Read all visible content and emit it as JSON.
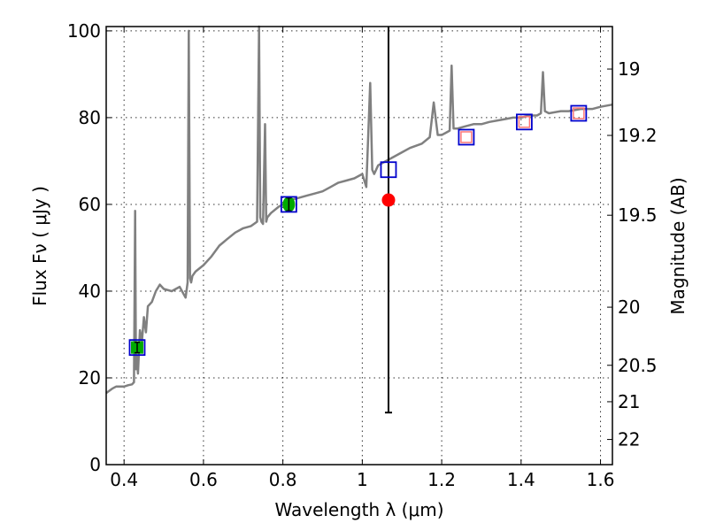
{
  "chart_data": {
    "type": "line",
    "title": "",
    "xlabel": "Wavelength  λ (μm)",
    "ylabel": "Flux  Fν  ( μJy )",
    "ylabel_right": "Magnitude (AB)",
    "xlim": [
      0.355,
      1.63
    ],
    "ylim": [
      0,
      101
    ],
    "grid": true,
    "x_ticks": [
      0.4,
      0.6,
      0.8,
      1.0,
      1.2,
      1.4,
      1.6
    ],
    "x_tick_labels": [
      "0.4",
      "0.6",
      "0.8",
      "1",
      "1.2",
      "1.4",
      "1.6"
    ],
    "y_ticks": [
      0,
      20,
      40,
      60,
      80,
      100
    ],
    "y_tick_labels": [
      "0",
      "20",
      "40",
      "60",
      "80",
      "100"
    ],
    "right_axis": {
      "ticks": [
        {
          "label": "19",
          "flux": 91.2
        },
        {
          "label": "19.2",
          "flux": 75.9
        },
        {
          "label": "19.5",
          "flux": 57.5
        },
        {
          "label": "20",
          "flux": 36.3
        },
        {
          "label": "20.5",
          "flux": 22.9
        },
        {
          "label": "21",
          "flux": 14.5
        },
        {
          "label": "22",
          "flux": 5.8
        }
      ]
    },
    "colors": {
      "spectrum": "#808080",
      "model_box": "#0000cc",
      "green_point": "#00aa00",
      "red_point": "#ff0000",
      "red_box": "#ff7777"
    },
    "series": [
      {
        "type": "line",
        "x": [
          0.355,
          0.37,
          0.38,
          0.39,
          0.4,
          0.41,
          0.42,
          0.425,
          0.428,
          0.43,
          0.432,
          0.435,
          0.44,
          0.445,
          0.45,
          0.455,
          0.46,
          0.47,
          0.48,
          0.49,
          0.5,
          0.52,
          0.54,
          0.555,
          0.56,
          0.563,
          0.566,
          0.569,
          0.572,
          0.58,
          0.6,
          0.62,
          0.64,
          0.66,
          0.68,
          0.7,
          0.72,
          0.735,
          0.74,
          0.743,
          0.746,
          0.75,
          0.755,
          0.758,
          0.761,
          0.77,
          0.79,
          0.8,
          0.82,
          0.84,
          0.86,
          0.88,
          0.9,
          0.92,
          0.94,
          0.96,
          0.98,
          1.0,
          1.01,
          1.02,
          1.025,
          1.03,
          1.04,
          1.06,
          1.08,
          1.1,
          1.12,
          1.15,
          1.17,
          1.18,
          1.19,
          1.2,
          1.21,
          1.22,
          1.225,
          1.23,
          1.24,
          1.26,
          1.28,
          1.3,
          1.32,
          1.35,
          1.38,
          1.4,
          1.42,
          1.44,
          1.45,
          1.455,
          1.46,
          1.47,
          1.5,
          1.52,
          1.55,
          1.58,
          1.6,
          1.63
        ],
        "y": [
          16.5,
          17.5,
          18.0,
          18.0,
          18.0,
          18.3,
          18.5,
          19.0,
          58.5,
          22.0,
          25.0,
          21.0,
          31.0,
          28.5,
          34.0,
          30.5,
          36.5,
          37.5,
          40.0,
          41.5,
          40.5,
          40.0,
          41.0,
          38.5,
          42.0,
          100.0,
          43.0,
          42.0,
          43.5,
          44.5,
          46.0,
          48.0,
          50.5,
          52.0,
          53.5,
          54.5,
          55.0,
          56.0,
          101.0,
          57.0,
          56.0,
          55.5,
          78.5,
          56.0,
          57.0,
          58.0,
          59.5,
          60.0,
          61.0,
          61.5,
          62.0,
          62.5,
          63.0,
          64.0,
          65.0,
          65.5,
          66.0,
          67.0,
          64.0,
          88.0,
          68.0,
          67.0,
          69.0,
          70.0,
          71.0,
          72.0,
          73.0,
          74.0,
          75.5,
          83.5,
          76.0,
          76.0,
          76.5,
          77.0,
          92.0,
          77.5,
          77.5,
          78.0,
          78.5,
          78.5,
          79.0,
          79.5,
          80.0,
          80.0,
          80.5,
          80.5,
          81.0,
          90.5,
          81.5,
          81.0,
          81.5,
          81.5,
          82.0,
          82.0,
          82.5,
          83.0
        ]
      },
      {
        "type": "scatter",
        "marker": "open-square",
        "x": [
          0.433,
          0.815,
          1.066,
          1.262,
          1.408,
          1.545
        ],
        "y": [
          27.0,
          60.0,
          68.0,
          75.5,
          79.0,
          81.0
        ]
      },
      {
        "type": "scatter",
        "marker": "filled-square",
        "x": [
          0.433
        ],
        "y": [
          27.0
        ],
        "yerr": [
          1.2
        ]
      },
      {
        "type": "scatter",
        "marker": "filled-circle",
        "x": [
          0.815
        ],
        "y": [
          60.0
        ],
        "yerr": [
          1.5
        ]
      },
      {
        "type": "scatter",
        "marker": "filled-circle",
        "x": [
          1.066
        ],
        "y": [
          61.0
        ],
        "yerr_low": [
          49.0
        ],
        "yerr_high": [
          40.0
        ]
      },
      {
        "type": "scatter",
        "marker": "open-square",
        "x": [
          1.262,
          1.408,
          1.545
        ],
        "y": [
          75.5,
          79.0,
          81.0
        ]
      }
    ]
  }
}
